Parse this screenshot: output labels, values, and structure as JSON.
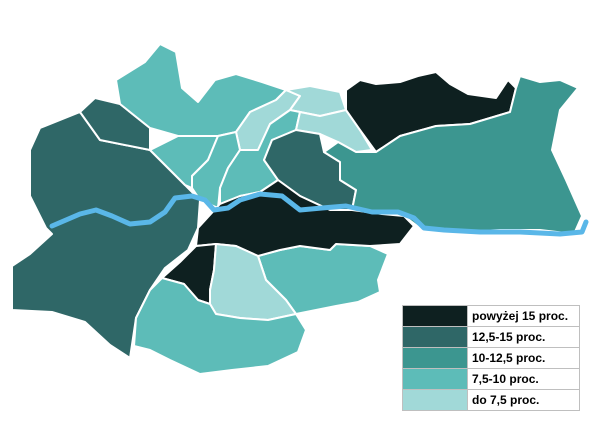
{
  "colors": {
    "c1": "#0e2020",
    "c2": "#2f6767",
    "c3": "#3c9690",
    "c4": "#5dbcb8",
    "c5": "#a1d9d8",
    "river": "#5ab7e8"
  },
  "legend": {
    "items": [
      {
        "label": "powyżej 15 proc.",
        "color": "#0e2020"
      },
      {
        "label": "12,5-15 proc.",
        "color": "#2f6767"
      },
      {
        "label": "10-12,5 proc.",
        "color": "#3c9690"
      },
      {
        "label": "7,5-10 proc.",
        "color": "#5dbcb8"
      },
      {
        "label": "do 7,5 proc.",
        "color": "#a1d9d8"
      }
    ]
  }
}
